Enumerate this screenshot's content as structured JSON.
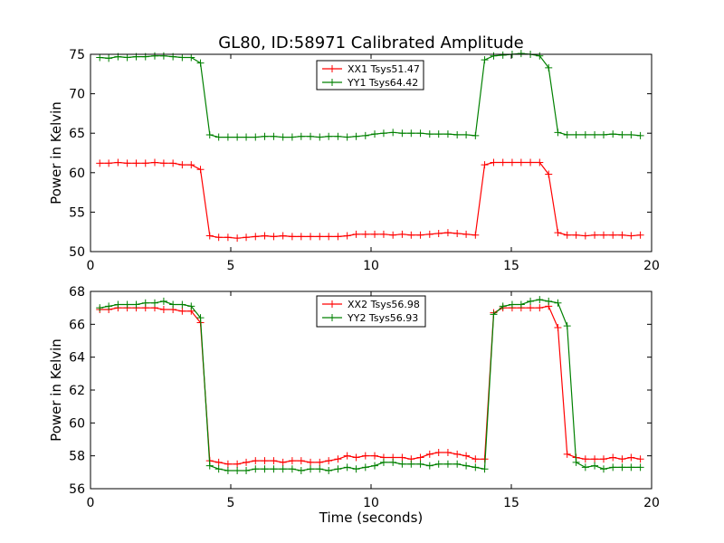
{
  "title": "GL80, ID:58971 Calibrated Amplitude",
  "chart_data": [
    {
      "type": "line",
      "ylabel": "Power in Kelvin",
      "xlabel": "",
      "xlim": [
        0,
        20
      ],
      "ylim": [
        50,
        75
      ],
      "xticks": [
        "0",
        "5",
        "10",
        "15",
        "20"
      ],
      "yticks": [
        "50",
        "55",
        "60",
        "65",
        "70",
        "75"
      ],
      "legend_position": "top-center",
      "x": [
        0.33,
        0.65,
        0.98,
        1.31,
        1.63,
        1.96,
        2.29,
        2.61,
        2.94,
        3.27,
        3.59,
        3.92,
        4.25,
        4.57,
        4.9,
        5.23,
        5.55,
        5.88,
        6.21,
        6.53,
        6.86,
        7.19,
        7.51,
        7.84,
        8.17,
        8.49,
        8.82,
        9.15,
        9.47,
        9.8,
        10.13,
        10.45,
        10.78,
        11.11,
        11.43,
        11.76,
        12.09,
        12.41,
        12.74,
        13.07,
        13.39,
        13.72,
        14.05,
        14.37,
        14.7,
        15.03,
        15.35,
        15.68,
        16.01,
        16.33,
        16.66,
        16.99,
        17.31,
        17.64,
        17.97,
        18.29,
        18.62,
        18.95,
        19.27,
        19.6
      ],
      "series": [
        {
          "name": "XX1 Tsys51.47",
          "color": "#ff0000",
          "values": [
            61.2,
            61.2,
            61.3,
            61.2,
            61.2,
            61.2,
            61.3,
            61.2,
            61.2,
            61.0,
            61.0,
            60.4,
            52.0,
            51.8,
            51.8,
            51.7,
            51.8,
            51.9,
            52.0,
            51.9,
            52.0,
            51.9,
            51.9,
            51.9,
            51.9,
            51.9,
            51.9,
            52.0,
            52.2,
            52.2,
            52.2,
            52.2,
            52.1,
            52.2,
            52.1,
            52.1,
            52.2,
            52.3,
            52.4,
            52.3,
            52.2,
            52.1,
            61.0,
            61.3,
            61.3,
            61.3,
            61.3,
            61.3,
            61.3,
            59.8,
            52.4,
            52.1,
            52.1,
            52.0,
            52.1,
            52.1,
            52.1,
            52.1,
            52.0,
            52.1
          ]
        },
        {
          "name": "YY1 Tsys64.42",
          "color": "#008000",
          "values": [
            74.6,
            74.5,
            74.7,
            74.6,
            74.7,
            74.7,
            74.8,
            74.8,
            74.7,
            74.6,
            74.6,
            73.9,
            64.8,
            64.5,
            64.5,
            64.5,
            64.5,
            64.5,
            64.6,
            64.6,
            64.5,
            64.5,
            64.6,
            64.6,
            64.5,
            64.6,
            64.6,
            64.5,
            64.6,
            64.7,
            64.9,
            65.0,
            65.1,
            65.0,
            65.0,
            65.0,
            64.9,
            64.9,
            64.9,
            64.8,
            64.8,
            64.7,
            74.3,
            74.8,
            74.9,
            75.0,
            75.1,
            75.0,
            74.8,
            73.3,
            65.1,
            64.8,
            64.8,
            64.8,
            64.8,
            64.8,
            64.9,
            64.8,
            64.8,
            64.7
          ]
        }
      ]
    },
    {
      "type": "line",
      "ylabel": "Power in Kelvin",
      "xlabel": "Time (seconds)",
      "xlim": [
        0,
        20
      ],
      "ylim": [
        56,
        68
      ],
      "xticks": [
        "0",
        "5",
        "10",
        "15",
        "20"
      ],
      "yticks": [
        "56",
        "58",
        "60",
        "62",
        "64",
        "66",
        "68"
      ],
      "legend_position": "top-center",
      "x": [
        0.33,
        0.65,
        0.98,
        1.31,
        1.63,
        1.96,
        2.29,
        2.61,
        2.94,
        3.27,
        3.59,
        3.92,
        4.25,
        4.57,
        4.9,
        5.23,
        5.55,
        5.88,
        6.21,
        6.53,
        6.86,
        7.19,
        7.51,
        7.84,
        8.17,
        8.49,
        8.82,
        9.15,
        9.47,
        9.8,
        10.13,
        10.45,
        10.78,
        11.11,
        11.43,
        11.76,
        12.09,
        12.41,
        12.74,
        13.07,
        13.39,
        13.72,
        14.05,
        14.37,
        14.7,
        15.03,
        15.35,
        15.68,
        16.01,
        16.33,
        16.66,
        16.99,
        17.31,
        17.64,
        17.97,
        18.29,
        18.62,
        18.95,
        19.27,
        19.6
      ],
      "series": [
        {
          "name": "XX2 Tsys56.98",
          "color": "#ff0000",
          "values": [
            66.9,
            66.9,
            67.0,
            67.0,
            67.0,
            67.0,
            67.0,
            66.9,
            66.9,
            66.8,
            66.8,
            66.1,
            57.7,
            57.6,
            57.5,
            57.5,
            57.6,
            57.7,
            57.7,
            57.7,
            57.6,
            57.7,
            57.7,
            57.6,
            57.6,
            57.7,
            57.8,
            58.0,
            57.9,
            58.0,
            58.0,
            57.9,
            57.9,
            57.9,
            57.8,
            57.9,
            58.1,
            58.2,
            58.2,
            58.1,
            58.0,
            57.8,
            57.8,
            66.7,
            67.0,
            67.0,
            67.0,
            67.0,
            67.0,
            67.1,
            65.8,
            58.1,
            57.9,
            57.8,
            57.8,
            57.8,
            57.9,
            57.8,
            57.9,
            57.8
          ]
        },
        {
          "name": "YY2 Tsys56.93",
          "color": "#008000",
          "values": [
            67.0,
            67.1,
            67.2,
            67.2,
            67.2,
            67.3,
            67.3,
            67.4,
            67.2,
            67.2,
            67.1,
            66.4,
            57.4,
            57.2,
            57.1,
            57.1,
            57.1,
            57.2,
            57.2,
            57.2,
            57.2,
            57.2,
            57.1,
            57.2,
            57.2,
            57.1,
            57.2,
            57.3,
            57.2,
            57.3,
            57.4,
            57.6,
            57.6,
            57.5,
            57.5,
            57.5,
            57.4,
            57.5,
            57.5,
            57.5,
            57.4,
            57.3,
            57.2,
            66.6,
            67.1,
            67.2,
            67.2,
            67.4,
            67.5,
            67.4,
            67.3,
            65.9,
            57.6,
            57.3,
            57.4,
            57.2,
            57.3,
            57.3,
            57.3,
            57.3
          ]
        }
      ]
    }
  ]
}
